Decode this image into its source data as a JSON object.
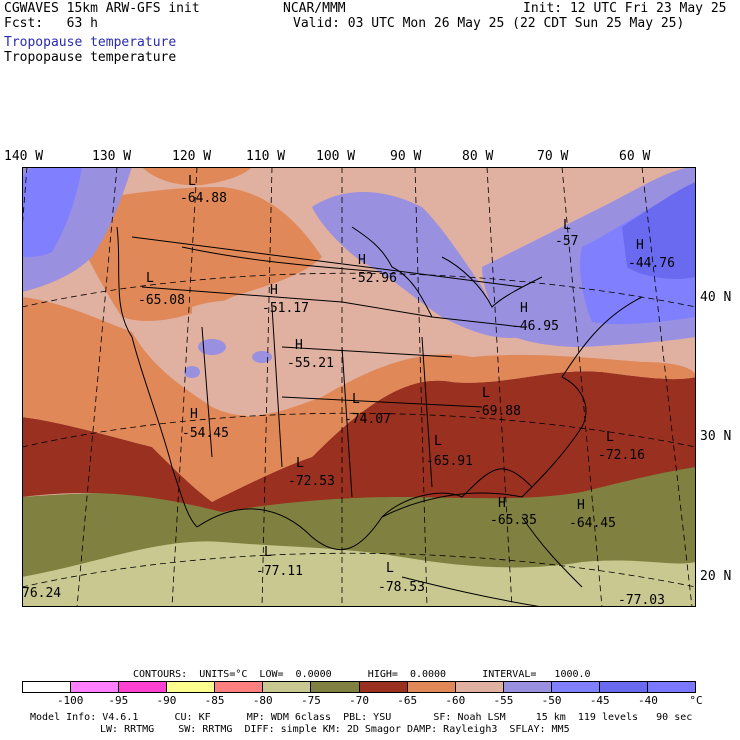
{
  "header": {
    "model": "CGWAVES 15km ARW-GFS init",
    "org": "NCAR/MMM",
    "init": "Init: 12 UTC Fri 23 May 25",
    "fcst": "Fcst:   63 h",
    "valid": "Valid: 03 UTC Mon 26 May 25 (22 CDT Sun 25 May 25)",
    "field_colored": "Tropopause temperature",
    "field_contour": "Tropopause temperature"
  },
  "axes": {
    "longitudes": [
      "140 W",
      "130 W",
      "120 W",
      "110 W",
      "100 W",
      "90 W",
      "80 W",
      "70 W",
      "60 W"
    ],
    "latitudes": [
      "40 N",
      "30 N",
      "20 N"
    ]
  },
  "map_labels": [
    {
      "type": "L",
      "value": "-64.88"
    },
    {
      "type": "L",
      "value": "-65.08"
    },
    {
      "type": "H",
      "value": "-51.17"
    },
    {
      "type": "H",
      "value": "-52.96"
    },
    {
      "type": "L",
      "value": "-57"
    },
    {
      "type": "H",
      "value": "-44.76"
    },
    {
      "type": "H",
      "value": "-46.95"
    },
    {
      "type": "H",
      "value": "-55.21"
    },
    {
      "type": "H",
      "value": "-54.45"
    },
    {
      "type": "L",
      "value": "-74.07"
    },
    {
      "type": "L",
      "value": "-69.88"
    },
    {
      "type": "L",
      "value": "-65.91"
    },
    {
      "type": "L",
      "value": "-72.16"
    },
    {
      "type": "L",
      "value": "-72.53"
    },
    {
      "type": "H",
      "value": "-65.35"
    },
    {
      "type": "H",
      "value": "-64.45"
    },
    {
      "type": "L",
      "value": "-77.11"
    },
    {
      "type": "L",
      "value": "-78.53"
    },
    {
      "type": "",
      "value": "76.24"
    },
    {
      "type": "",
      "value": "-77.03"
    }
  ],
  "contours_line": "CONTOURS:  UNITS=°C  LOW=  0.0000      HIGH=  0.0000      INTERVAL=   1000.0",
  "colorbar": {
    "colors": [
      "#ffffff",
      "#ff80ff",
      "#ff40d0",
      "#ffff90",
      "#ff8080",
      "#c8c890",
      "#808040",
      "#9a3020",
      "#e08858",
      "#e0b0a0",
      "#9a90e0",
      "#8080ff",
      "#6a6af0",
      "#7a78ff"
    ],
    "labels": [
      "-100",
      "-95",
      "-90",
      "-85",
      "-80",
      "-75",
      "-70",
      "-65",
      "-60",
      "-55",
      "-50",
      "-45",
      "-40",
      "°C"
    ]
  },
  "footer": {
    "line1": "Model Info: V4.6.1      CU: KF      MP: WDM 6class  PBL: YSU       SF: Noah LSM     15 km  119 levels   90 sec",
    "line2": "LW: RRTMG    SW: RRTMG  DIFF: simple KM: 2D Smagor DAMP: Rayleigh3  SFLAY: MM5"
  }
}
